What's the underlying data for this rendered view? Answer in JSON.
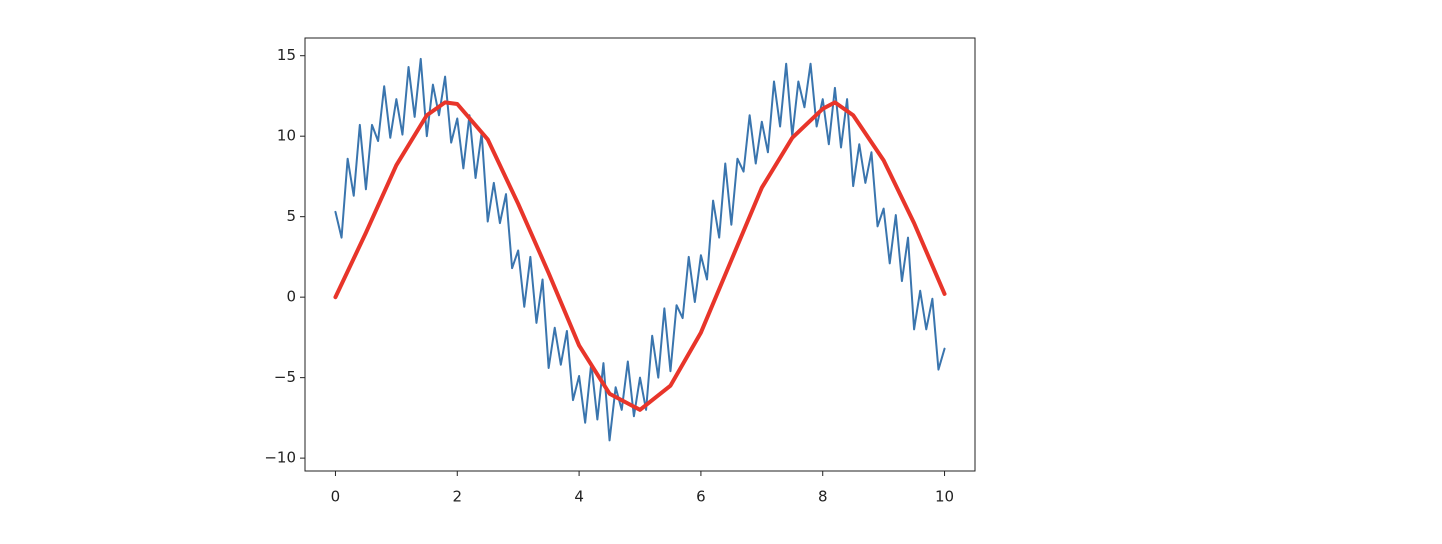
{
  "chart_data": {
    "type": "line",
    "xlim": [
      -0.5,
      10.5
    ],
    "ylim": [
      -10.8,
      16.1
    ],
    "xticks": [
      0,
      2,
      4,
      6,
      8,
      10
    ],
    "yticks": [
      {
        "value": -10,
        "label": "−10"
      },
      {
        "value": -5,
        "label": "−5"
      },
      0,
      5,
      10,
      15
    ],
    "grid": false,
    "series": [
      {
        "color": "#3a75ae",
        "x": [
          0,
          0.1,
          0.2,
          0.3,
          0.4,
          0.5,
          0.6,
          0.7,
          0.8,
          0.9,
          1,
          1.1,
          1.2,
          1.3,
          1.4,
          1.5,
          1.6,
          1.7,
          1.8,
          1.9,
          2,
          2.1,
          2.2,
          2.3,
          2.4,
          2.5,
          2.6,
          2.7,
          2.8,
          2.9,
          3,
          3.1,
          3.2,
          3.3,
          3.4,
          3.5,
          3.6,
          3.7,
          3.8,
          3.9,
          4,
          4.1,
          4.2,
          4.3,
          4.4,
          4.5,
          4.6,
          4.7,
          4.8,
          4.9,
          5,
          5.1,
          5.2,
          5.3,
          5.4,
          5.5,
          5.6,
          5.7,
          5.8,
          5.9,
          6,
          6.1,
          6.2,
          6.3,
          6.4,
          6.5,
          6.6,
          6.7,
          6.8,
          6.9,
          7,
          7.1,
          7.2,
          7.3,
          7.4,
          7.5,
          7.6,
          7.7,
          7.8,
          7.9,
          8,
          8.1,
          8.2,
          8.3,
          8.4,
          8.5,
          8.6,
          8.7,
          8.8,
          8.9,
          9,
          9.1,
          9.2,
          9.3,
          9.4,
          9.5,
          9.6,
          9.7,
          9.8,
          9.9,
          10
        ],
        "values": [
          5.3,
          3.7,
          8.6,
          6.3,
          10.7,
          6.7,
          10.7,
          9.7,
          13.1,
          9.9,
          12.3,
          10.1,
          14.3,
          11.2,
          14.8,
          10.0,
          13.2,
          11.3,
          13.7,
          9.6,
          11.1,
          8.0,
          11.3,
          7.4,
          10.2,
          4.7,
          7.1,
          4.6,
          6.4,
          1.8,
          2.9,
          -0.6,
          2.5,
          -1.6,
          1.1,
          -4.4,
          -1.9,
          -4.2,
          -2.1,
          -6.4,
          -4.9,
          -7.8,
          -4.1,
          -7.6,
          -4.1,
          -8.9,
          -5.6,
          -7.0,
          -4.0,
          -7.4,
          -5.0,
          -7.0,
          -2.4,
          -5.0,
          -0.7,
          -4.6,
          -0.5,
          -1.3,
          2.5,
          -0.3,
          2.6,
          1.1,
          6.0,
          3.7,
          8.3,
          4.5,
          8.6,
          7.8,
          11.3,
          8.3,
          10.9,
          9.0,
          13.4,
          10.6,
          14.5,
          10.0,
          13.4,
          11.8,
          14.5,
          10.6,
          12.3,
          9.5,
          13.0,
          9.3,
          12.3,
          6.9,
          9.5,
          7.1,
          9.0,
          4.4,
          5.5,
          2.1,
          5.1,
          1.0,
          3.7,
          -2.0,
          0.4,
          -2.0,
          -0.1,
          -4.5,
          -3.2
        ]
      },
      {
        "color": "#e8352a",
        "x": [
          0,
          0.5,
          1,
          1.5,
          1.8,
          2,
          2.5,
          3,
          3.5,
          4,
          4.5,
          5,
          5.5,
          6,
          6.5,
          7,
          7.5,
          8,
          8.2,
          8.5,
          9,
          9.5,
          10
        ],
        "values": [
          0,
          4,
          8.2,
          11.3,
          12.1,
          12,
          9.8,
          5.8,
          1.5,
          -3,
          -6,
          -7,
          -5.5,
          -2.2,
          2.3,
          6.8,
          9.9,
          11.7,
          12.1,
          11.3,
          8.5,
          4.6,
          0.2
        ]
      }
    ]
  }
}
